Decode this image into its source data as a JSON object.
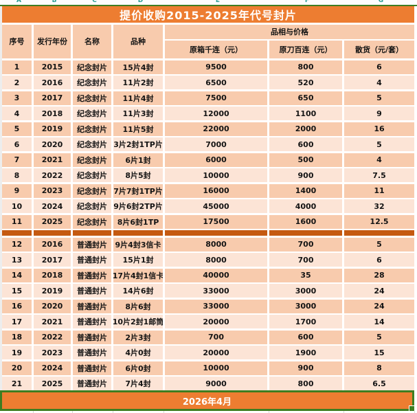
{
  "spreadsheet": {
    "column_letters": [
      "A",
      "B",
      "C",
      "D",
      "E",
      "F",
      "G"
    ]
  },
  "title": "提价收购2015-2025年代号封片",
  "table": {
    "headers": {
      "seq": "序号",
      "year": "发行年份",
      "name": "名称",
      "variety": "品种",
      "group": "品相与价格",
      "price_box": "原箱千连（元）",
      "price_blade": "原刀百连（元）",
      "price_loose": "散货（元/套）"
    },
    "separator_after_seq": "11",
    "rows": [
      {
        "seq": "1",
        "year": "2015",
        "name": "纪念封片",
        "variety": "15片4封",
        "box": "9500",
        "blade": "800",
        "loose": "6",
        "shade": "dark"
      },
      {
        "seq": "2",
        "year": "2016",
        "name": "纪念封片",
        "variety": "11片2封",
        "box": "6500",
        "blade": "520",
        "loose": "4",
        "shade": "light"
      },
      {
        "seq": "3",
        "year": "2017",
        "name": "纪念封片",
        "variety": "11片4封",
        "box": "7500",
        "blade": "650",
        "loose": "5",
        "shade": "dark"
      },
      {
        "seq": "4",
        "year": "2018",
        "name": "纪念封片",
        "variety": "11片3封",
        "box": "12000",
        "blade": "1100",
        "loose": "9",
        "shade": "light"
      },
      {
        "seq": "5",
        "year": "2019",
        "name": "纪念封片",
        "variety": "11片5封",
        "box": "22000",
        "blade": "2000",
        "loose": "16",
        "shade": "dark"
      },
      {
        "seq": "6",
        "year": "2020",
        "name": "纪念封片",
        "variety": "3片2封1TP片",
        "box": "7000",
        "blade": "600",
        "loose": "5",
        "shade": "light"
      },
      {
        "seq": "7",
        "year": "2021",
        "name": "纪念封片",
        "variety": "6片1封",
        "box": "6000",
        "blade": "500",
        "loose": "4",
        "shade": "dark"
      },
      {
        "seq": "8",
        "year": "2022",
        "name": "纪念封片",
        "variety": "8片5封",
        "box": "10000",
        "blade": "900",
        "loose": "7.5",
        "shade": "light"
      },
      {
        "seq": "9",
        "year": "2023",
        "name": "纪念封片",
        "variety": "7片7封1TP片",
        "box": "16000",
        "blade": "1400",
        "loose": "11",
        "shade": "dark"
      },
      {
        "seq": "10",
        "year": "2024",
        "name": "纪念封片",
        "variety": "9片6封2TP片",
        "box": "45000",
        "blade": "4000",
        "loose": "32",
        "shade": "light"
      },
      {
        "seq": "11",
        "year": "2025",
        "name": "纪念封片",
        "variety": "8片6封1TP",
        "box": "17500",
        "blade": "1600",
        "loose": "12.5",
        "shade": "dark"
      },
      {
        "seq": "12",
        "year": "2016",
        "name": "普通封片",
        "variety": "9片4封3信卡",
        "box": "8000",
        "blade": "700",
        "loose": "5",
        "shade": "dark"
      },
      {
        "seq": "13",
        "year": "2017",
        "name": "普通封片",
        "variety": "15片1封",
        "box": "8000",
        "blade": "700",
        "loose": "6",
        "shade": "light"
      },
      {
        "seq": "14",
        "year": "2018",
        "name": "普通封片",
        "variety": "17片4封1信卡",
        "box": "40000",
        "blade": "35",
        "loose": "28",
        "shade": "dark"
      },
      {
        "seq": "15",
        "year": "2019",
        "name": "普通封片",
        "variety": "14片6封",
        "box": "33000",
        "blade": "3000",
        "loose": "24",
        "shade": "light"
      },
      {
        "seq": "16",
        "year": "2020",
        "name": "普通封片",
        "variety": "8片6封",
        "box": "33000",
        "blade": "3000",
        "loose": "24",
        "shade": "dark"
      },
      {
        "seq": "17",
        "year": "2021",
        "name": "普通封片",
        "variety": "10片2封1邮筒",
        "box": "20000",
        "blade": "1700",
        "loose": "14",
        "shade": "light"
      },
      {
        "seq": "18",
        "year": "2022",
        "name": "普通封片",
        "variety": "2片3封",
        "box": "700",
        "blade": "600",
        "loose": "5",
        "shade": "dark"
      },
      {
        "seq": "19",
        "year": "2023",
        "name": "普通封片",
        "variety": "4片0封",
        "box": "20000",
        "blade": "1900",
        "loose": "15",
        "shade": "light"
      },
      {
        "seq": "20",
        "year": "2024",
        "name": "普通封片",
        "variety": "6片0封",
        "box": "10000",
        "blade": "900",
        "loose": "8",
        "shade": "dark"
      },
      {
        "seq": "21",
        "year": "2025",
        "name": "普通封片",
        "variety": "7片4封",
        "box": "9000",
        "blade": "800",
        "loose": "6.5",
        "shade": "light"
      }
    ]
  },
  "footer": {
    "label": "2026年4月"
  },
  "colors": {
    "accent_orange": "#ED7D31",
    "dark_orange": "#C55A11",
    "peach_dark": "#F8CBAD",
    "peach_light": "#FCE4D6",
    "selection_green": "#3E7D21",
    "letter_teal": "#2B9D93"
  }
}
